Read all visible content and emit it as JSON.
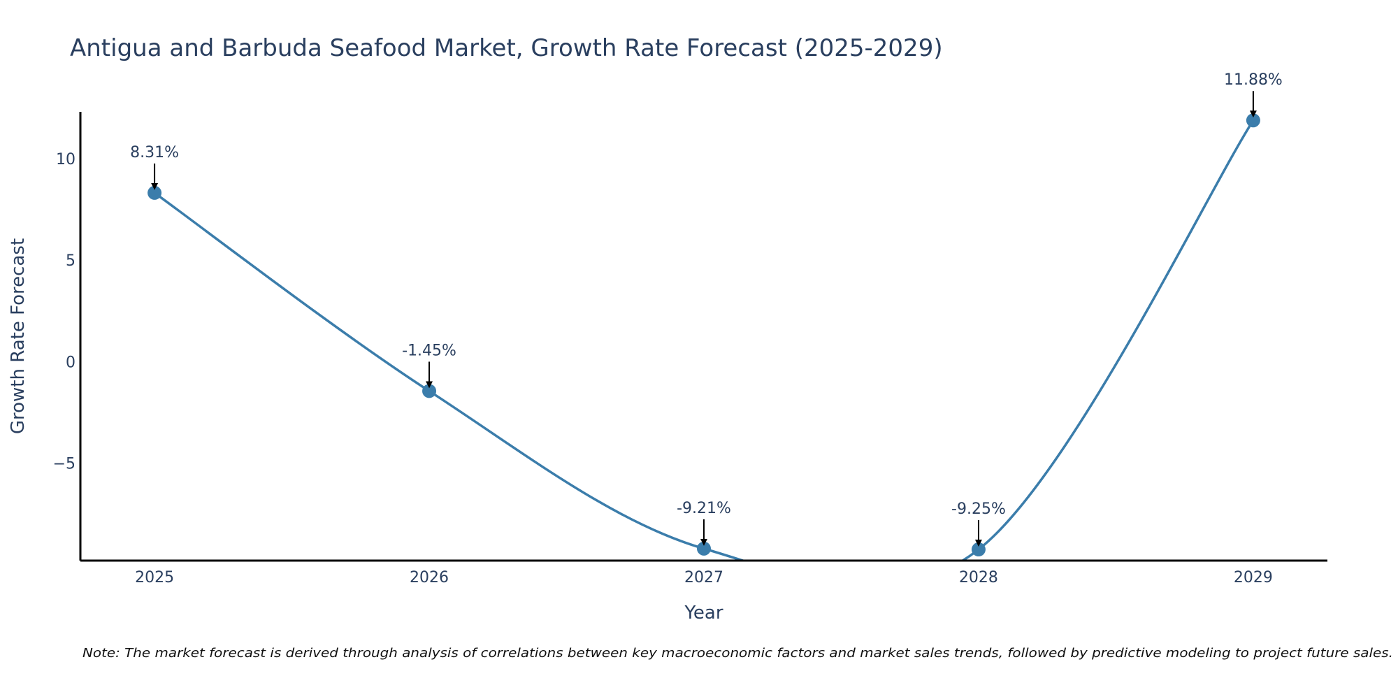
{
  "chart_data": {
    "type": "line",
    "title": "Antigua and Barbuda Seafood Market, Growth Rate Forecast (2025-2029)",
    "xlabel": "Year",
    "ylabel": "Growth Rate Forecast",
    "categories": [
      "2025",
      "2026",
      "2027",
      "2028",
      "2029"
    ],
    "series": [
      {
        "name": "Growth Rate Forecast",
        "values": [
          8.31,
          -1.45,
          -9.21,
          -9.25,
          11.88
        ]
      }
    ],
    "data_labels": [
      "8.31%",
      "-1.45%",
      "-9.21%",
      "-9.25%",
      "11.88%"
    ],
    "yticks": [
      -5,
      0,
      5,
      10
    ],
    "ytick_labels": [
      "−5",
      "0",
      "5",
      "10"
    ],
    "ylim": [
      -9.8,
      12.3
    ],
    "xlim": [
      -0.27,
      4.27
    ],
    "line_color": "#3b7dab",
    "grid": false,
    "note": "Note: The market forecast is derived through analysis of correlations between key macroeconomic factors and market sales trends, followed by predictive modeling to project future sales."
  }
}
